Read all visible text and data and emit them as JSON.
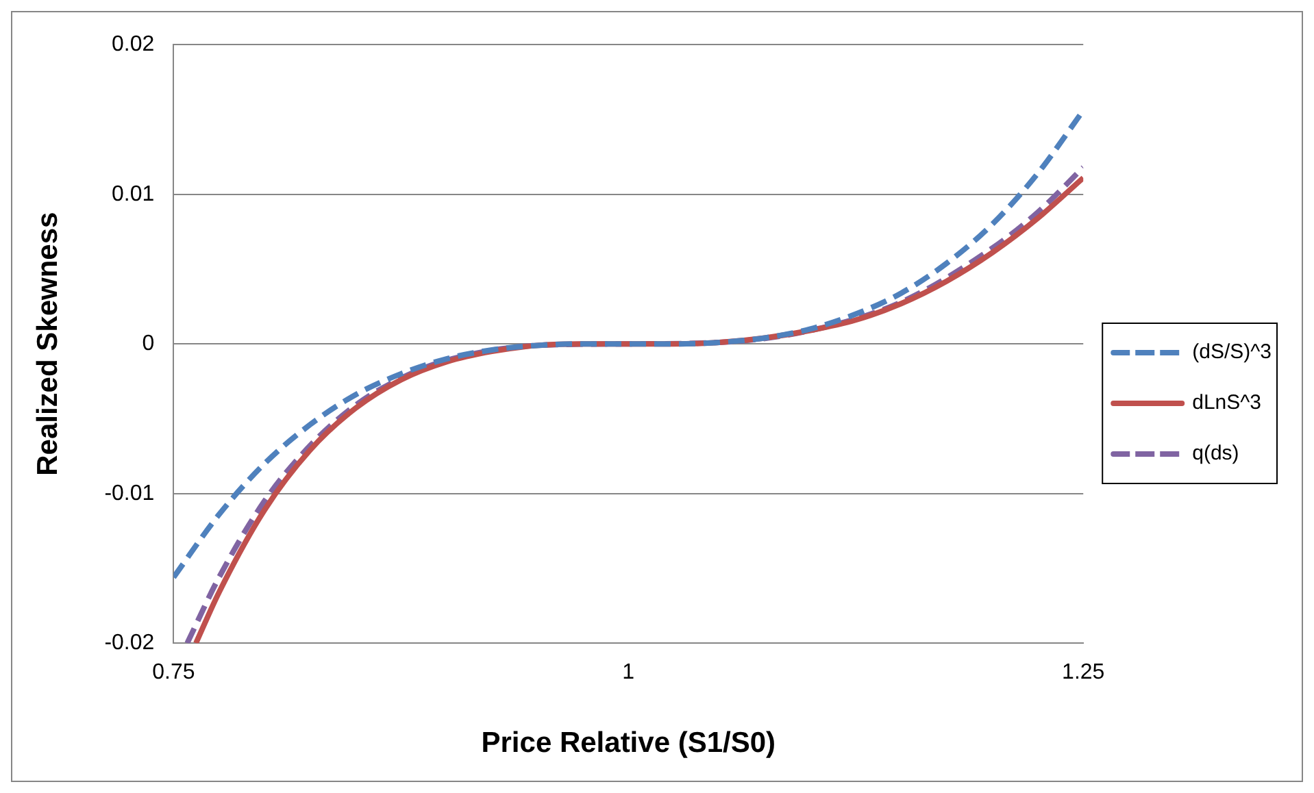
{
  "chart_data": {
    "type": "line",
    "xlabel": "Price Relative (S1/S0)",
    "ylabel": "Realized Skewness",
    "xlim": [
      0.75,
      1.25
    ],
    "ylim": [
      -0.02,
      0.02
    ],
    "xticks": [
      0.75,
      1,
      1.25
    ],
    "yticks": [
      -0.02,
      -0.01,
      0,
      0.01,
      0.02
    ],
    "grid": "y",
    "legend": "right",
    "marker": "none",
    "series": [
      {
        "name": "(dS/S)^3",
        "color": "#4f81bd",
        "line_style": "dashed",
        "x": [
          0.75,
          0.775,
          0.8,
          0.825,
          0.85,
          0.875,
          0.9,
          0.925,
          0.95,
          0.975,
          1,
          1.025,
          1.05,
          1.075,
          1.1,
          1.125,
          1.15,
          1.175,
          1.2,
          1.225,
          1.25
        ],
        "values": [
          -0.0156,
          -0.0114,
          -0.008,
          -0.0054,
          -0.0034,
          -0.002,
          -0.001,
          -0.0004,
          -0.0001,
          0,
          0,
          0,
          0.0001,
          0.0004,
          0.001,
          0.002,
          0.0034,
          0.0054,
          0.008,
          0.0114,
          0.0156
        ]
      },
      {
        "name": "dLnS^3",
        "color": "#c0504d",
        "line_style": "solid",
        "x": [
          0.7623,
          0.775,
          0.8,
          0.825,
          0.85,
          0.875,
          0.9,
          0.925,
          0.95,
          0.975,
          1,
          1.025,
          1.05,
          1.075,
          1.1,
          1.125,
          1.15,
          1.175,
          1.2,
          1.225,
          1.25
        ],
        "values": [
          -0.02,
          -0.0166,
          -0.0111,
          -0.0071,
          -0.0043,
          -0.0024,
          -0.0012,
          -0.0005,
          -0.0001,
          0,
          0,
          0,
          0.0001,
          0.0004,
          0.0009,
          0.0016,
          0.0027,
          0.0042,
          0.0061,
          0.0084,
          0.0111
        ]
      },
      {
        "name": "q(ds)",
        "color": "#8064a2",
        "line_style": "dashed",
        "x": [
          0.7575,
          0.775,
          0.8,
          0.825,
          0.85,
          0.875,
          0.9,
          0.95,
          1,
          1.05,
          1.1,
          1.15,
          1.2,
          1.225,
          1.25
        ],
        "values": [
          -0.02,
          -0.0156,
          -0.0105,
          -0.0068,
          -0.0041,
          -0.0023,
          -0.0011,
          -0.0001,
          0,
          0.0001,
          0.0009,
          0.0028,
          0.0064,
          0.0088,
          0.0118
        ]
      }
    ]
  }
}
